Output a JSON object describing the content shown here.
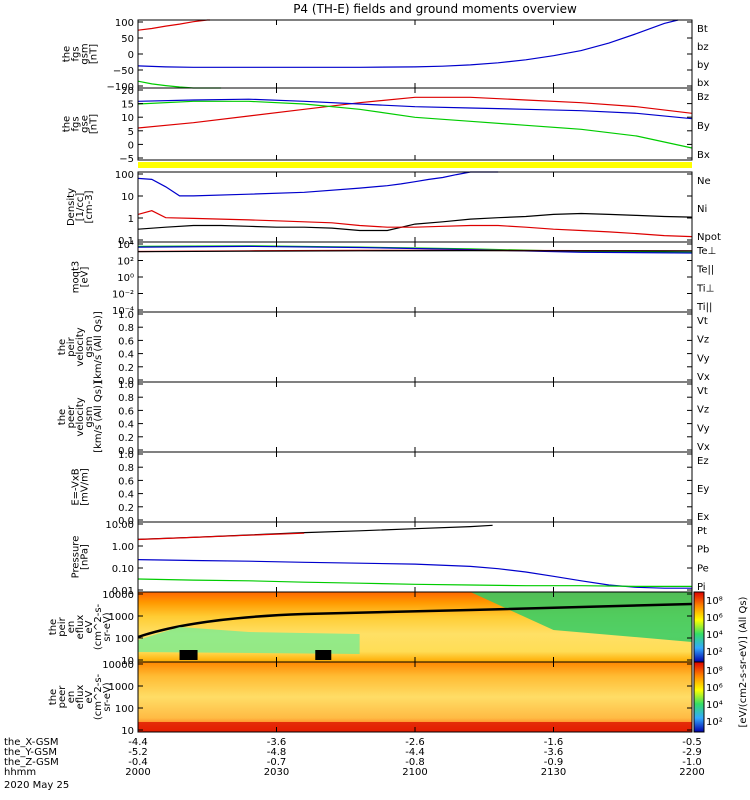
{
  "title": "P4 (TH-E) fields and ground moments overview",
  "colors": {
    "black": "#000000",
    "red": "#dd0000",
    "green": "#00cc00",
    "blue": "#0000cc",
    "yellow": "#ffff00"
  },
  "chart_data": [
    {
      "type": "line",
      "id": "fgs",
      "ylabel": [
        "the",
        "fgs",
        "gsm",
        "[nT]"
      ],
      "ylim": [
        -100,
        100
      ],
      "yticks": [
        "100",
        "50",
        "0",
        "−50",
        "−100"
      ],
      "legend": [
        {
          "name": "Bt",
          "color": "black"
        },
        {
          "name": "bz",
          "color": "red"
        },
        {
          "name": "by",
          "color": "green"
        },
        {
          "name": "bx",
          "color": "blue"
        }
      ],
      "series": [
        {
          "name": "bz",
          "color": "red",
          "x": [
            0,
            5,
            10,
            15,
            20,
            25,
            26
          ],
          "y": [
            70,
            75,
            82,
            88,
            95,
            100,
            101
          ]
        },
        {
          "name": "bx",
          "color": "blue",
          "x": [
            0,
            10,
            20,
            30,
            40,
            60,
            80,
            100,
            110,
            120,
            130,
            140,
            150,
            160,
            170,
            180,
            190,
            195
          ],
          "y": [
            -35,
            -38,
            -39,
            -39,
            -39,
            -39,
            -39,
            -38,
            -36,
            -32,
            -26,
            -17,
            -5,
            10,
            32,
            60,
            90,
            110
          ]
        },
        {
          "name": "by",
          "color": "green",
          "x": [
            0,
            5,
            10,
            15,
            20,
            25,
            30
          ],
          "y": [
            -80,
            -88,
            -93,
            -97,
            -100,
            -102,
            -104
          ]
        }
      ]
    },
    {
      "type": "line",
      "id": "fgs_gse",
      "ylabel": [
        "the",
        "fgs",
        "gse",
        "[nT]"
      ],
      "ylim": [
        -7,
        20
      ],
      "yticks": [
        "20",
        "15",
        "10",
        "5",
        "0",
        "−5"
      ],
      "legend": [
        {
          "name": "Bz",
          "color": "red"
        },
        {
          "name": "By",
          "color": "green"
        },
        {
          "name": "Bx",
          "color": "blue"
        }
      ],
      "series": [
        {
          "name": "Bz",
          "color": "red",
          "x": [
            0,
            20,
            40,
            60,
            80,
            100,
            120,
            140,
            160,
            180,
            200
          ],
          "y": [
            5,
            7,
            9.5,
            12,
            14.5,
            16.5,
            16.5,
            15.5,
            14.5,
            13,
            10.5
          ]
        },
        {
          "name": "By",
          "color": "green",
          "x": [
            0,
            20,
            40,
            60,
            80,
            100,
            120,
            140,
            160,
            180,
            200
          ],
          "y": [
            14,
            15,
            15,
            14,
            12,
            9,
            7.5,
            6,
            4.5,
            2,
            -2.5
          ]
        },
        {
          "name": "Bx",
          "color": "blue",
          "x": [
            0,
            20,
            40,
            60,
            80,
            100,
            120,
            140,
            160,
            180,
            200
          ],
          "y": [
            15,
            15.5,
            15.8,
            15,
            14,
            13,
            12.5,
            12,
            11.5,
            10.5,
            8.5
          ]
        }
      ]
    },
    {
      "type": "line",
      "id": "density",
      "ylabel": [
        "Density",
        "[1/cc]",
        "[cm-3]"
      ],
      "yscale": "log",
      "ylim": [
        0.1,
        200
      ],
      "yticks": [
        "100",
        "10",
        "1",
        "0.1"
      ],
      "legend": [
        {
          "name": "Ne",
          "color": "red"
        },
        {
          "name": "Ni",
          "color": "black"
        },
        {
          "name": "Npot",
          "color": "blue"
        }
      ],
      "series": [
        {
          "name": "Npot",
          "color": "blue",
          "x": [
            0,
            5,
            10,
            15,
            20,
            40,
            60,
            80,
            90,
            95,
            100,
            105,
            110,
            115,
            120,
            125,
            130
          ],
          "y": [
            100,
            90,
            40,
            15,
            15,
            18,
            22,
            35,
            45,
            55,
            70,
            90,
            110,
            150,
            200,
            220,
            250
          ]
        },
        {
          "name": "Ni",
          "color": "black",
          "x": [
            0,
            10,
            20,
            30,
            40,
            50,
            60,
            70,
            80,
            90,
            100,
            110,
            120,
            130,
            140,
            150,
            160,
            170,
            180,
            190,
            200
          ],
          "y": [
            0.4,
            0.5,
            0.6,
            0.6,
            0.55,
            0.5,
            0.5,
            0.45,
            0.35,
            0.35,
            0.7,
            0.9,
            1.2,
            1.4,
            1.6,
            2.0,
            2.2,
            2.0,
            1.8,
            1.6,
            1.5
          ]
        },
        {
          "name": "Ne",
          "color": "red",
          "x": [
            0,
            5,
            10,
            20,
            30,
            40,
            50,
            60,
            70,
            80,
            90,
            100,
            110,
            120,
            130,
            140,
            150,
            160,
            170,
            180,
            190,
            200
          ],
          "y": [
            2,
            3,
            1.4,
            1.3,
            1.2,
            1.1,
            1.0,
            0.9,
            0.8,
            0.6,
            0.5,
            0.5,
            0.55,
            0.6,
            0.6,
            0.5,
            0.4,
            0.35,
            0.3,
            0.25,
            0.2,
            0.18
          ]
        }
      ]
    },
    {
      "type": "line",
      "id": "temp",
      "ylabel": [
        "moqt3",
        "[eV]"
      ],
      "yscale": "log",
      "ylim": [
        0.0001,
        20000
      ],
      "yticks": [
        "10⁴",
        "10²",
        "10⁰",
        "10⁻²",
        "10⁻⁴"
      ],
      "legend": [
        {
          "name": "Te⊥",
          "color": "red"
        },
        {
          "name": "Te||",
          "color": "black"
        },
        {
          "name": "Ti⊥",
          "color": "blue"
        },
        {
          "name": "Ti||",
          "color": "green"
        }
      ],
      "series": [
        {
          "name": "Ti||",
          "color": "green",
          "x": [
            0,
            40,
            80,
            120,
            160,
            200
          ],
          "y": [
            6000,
            7000,
            5000,
            3000,
            1500,
            1200
          ]
        },
        {
          "name": "Ti⊥",
          "color": "blue",
          "x": [
            0,
            40,
            80,
            120,
            160,
            200
          ],
          "y": [
            5000,
            6000,
            4500,
            2500,
            1200,
            1000
          ]
        },
        {
          "name": "Te⊥",
          "color": "red",
          "x": [
            0,
            40,
            80,
            120,
            160,
            200
          ],
          "y": [
            1500,
            1800,
            2000,
            2000,
            1900,
            1800
          ]
        },
        {
          "name": "Te||",
          "color": "black",
          "x": [
            0,
            40,
            80,
            120,
            160,
            200
          ],
          "y": [
            1400,
            1600,
            1800,
            1900,
            1800,
            1700
          ]
        }
      ]
    },
    {
      "type": "line",
      "id": "peir_vel",
      "ylabel": [
        "the",
        "peir",
        "velocity",
        "gsm",
        "[km/s (All Qs)]"
      ],
      "ylim": [
        0,
        1
      ],
      "yticks": [
        "1.0",
        "0.8",
        "0.6",
        "0.4",
        "0.2",
        "0.0"
      ],
      "legend": [
        {
          "name": "Vt",
          "color": "black"
        },
        {
          "name": "Vz",
          "color": "red"
        },
        {
          "name": "Vy",
          "color": "green"
        },
        {
          "name": "Vx",
          "color": "blue"
        }
      ],
      "series": []
    },
    {
      "type": "line",
      "id": "peer_vel",
      "ylabel": [
        "the",
        "peer",
        "velocity",
        "gsm",
        "[km/s (All Qs)]"
      ],
      "ylim": [
        0,
        1
      ],
      "yticks": [
        "1.0",
        "0.8",
        "0.6",
        "0.4",
        "0.2",
        "0.0"
      ],
      "legend": [
        {
          "name": "Vt",
          "color": "black"
        },
        {
          "name": "Vz",
          "color": "red"
        },
        {
          "name": "Vy",
          "color": "green"
        },
        {
          "name": "Vx",
          "color": "blue"
        }
      ],
      "series": []
    },
    {
      "type": "line",
      "id": "efield",
      "ylabel": [
        "E=-VxB",
        "[mV/m]"
      ],
      "ylim": [
        0,
        1
      ],
      "yticks": [
        "1.0",
        "0.8",
        "0.6",
        "0.4",
        "0.2",
        "0.0"
      ],
      "legend": [
        {
          "name": "Ez",
          "color": "red"
        },
        {
          "name": "Ey",
          "color": "green"
        },
        {
          "name": "Ex",
          "color": "blue"
        }
      ],
      "series": []
    },
    {
      "type": "line",
      "id": "pressure",
      "ylabel": [
        "Pressure",
        "[nPa]"
      ],
      "yscale": "log",
      "ylim": [
        0.005,
        30
      ],
      "yticks": [
        "10.00",
        "1.00",
        "0.10",
        "0.01"
      ],
      "legend": [
        {
          "name": "Pt",
          "color": "black"
        },
        {
          "name": "Pb",
          "color": "red"
        },
        {
          "name": "Pe",
          "color": "green"
        },
        {
          "name": "Pi",
          "color": "blue"
        }
      ],
      "series": [
        {
          "name": "Pt",
          "color": "black",
          "x": [
            0,
            20,
            40,
            60,
            80,
            100,
            120,
            128
          ],
          "y": [
            3.5,
            4.5,
            6,
            8,
            10,
            13,
            17,
            20
          ]
        },
        {
          "name": "Pb",
          "color": "red",
          "x": [
            0,
            20,
            40,
            60
          ],
          "y": [
            3.4,
            4.4,
            5.8,
            7.5
          ]
        },
        {
          "name": "Pi",
          "color": "blue",
          "x": [
            0,
            20,
            40,
            60,
            80,
            100,
            120,
            130,
            140,
            150,
            160,
            170,
            180,
            190,
            200
          ],
          "y": [
            0.28,
            0.25,
            0.23,
            0.2,
            0.18,
            0.16,
            0.12,
            0.09,
            0.06,
            0.035,
            0.02,
            0.012,
            0.009,
            0.008,
            0.008
          ]
        },
        {
          "name": "Pe",
          "color": "green",
          "x": [
            0,
            20,
            40,
            60,
            80,
            100,
            120,
            140,
            160,
            180,
            200
          ],
          "y": [
            0.025,
            0.022,
            0.02,
            0.017,
            0.015,
            0.013,
            0.012,
            0.011,
            0.011,
            0.01,
            0.01
          ]
        }
      ]
    },
    {
      "type": "heatmap",
      "id": "peir_eflux",
      "ylabel": [
        "the",
        "peir",
        "en",
        "eflux",
        "eV",
        "(cm^2-s-",
        "sr-eV)"
      ],
      "yscale": "log",
      "ylim": [
        5,
        15000
      ],
      "yticks": [
        "10000",
        "1000",
        "100",
        "10"
      ]
    },
    {
      "type": "heatmap",
      "id": "peer_eflux",
      "ylabel": [
        "the",
        "peer",
        "en",
        "eflux",
        "eV",
        "(cm^2-s-",
        "sr-eV)"
      ],
      "yscale": "log",
      "ylim": [
        5,
        15000
      ],
      "yticks": [
        "10000",
        "1000",
        "100",
        "10"
      ]
    }
  ],
  "colorbar": {
    "label": "[eV/(cm2-s-sr-eV)] (All Qs)",
    "ticks_top": [
      "10⁸",
      "10⁶",
      "10⁴",
      "10²"
    ],
    "ticks_bottom": [
      "10⁸",
      "10⁶",
      "10⁴",
      "10²"
    ]
  },
  "xaxis": {
    "rows": [
      {
        "label": "the_X-GSM",
        "values": [
          "-4.4",
          "-3.6",
          "-2.6",
          "-1.6",
          "-0.5"
        ]
      },
      {
        "label": "the_Y-GSM",
        "values": [
          "-5.2",
          "-4.8",
          "-4.4",
          "-3.6",
          "-2.9"
        ]
      },
      {
        "label": "the_Z-GSM",
        "values": [
          "-0.4",
          "-0.7",
          "-0.8",
          "-0.9",
          "-1.0"
        ]
      },
      {
        "label": "hhmm",
        "values": [
          "2000",
          "2030",
          "2100",
          "2130",
          "2200"
        ]
      }
    ],
    "date": "2020 May 25"
  }
}
